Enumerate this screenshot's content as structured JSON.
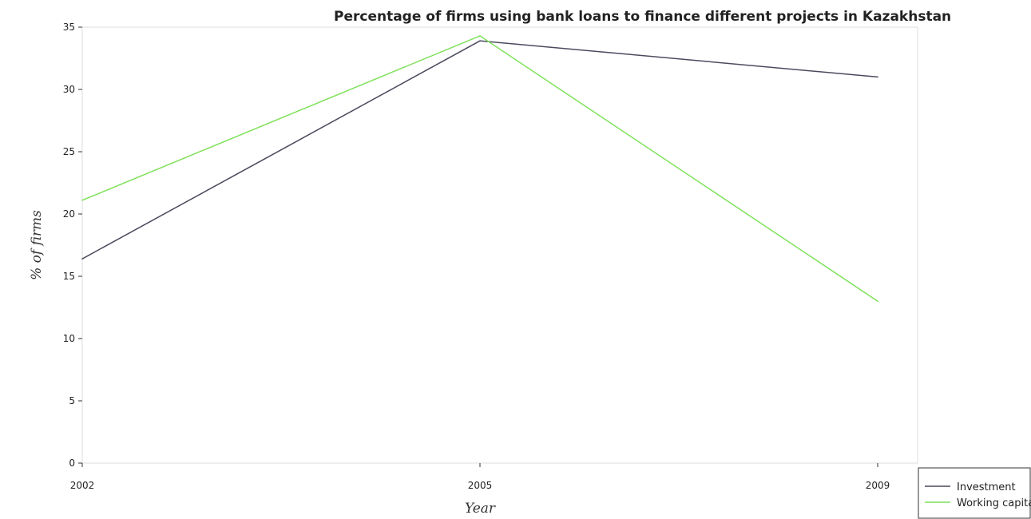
{
  "chart_data": {
    "type": "line",
    "title": "Percentage of firms using bank loans to finance different projects in Kazakhstan",
    "xlabel": "Year",
    "ylabel": "% of firms",
    "categories": [
      "2002",
      "2005",
      "2009"
    ],
    "ylim": [
      0,
      35
    ],
    "yticks": [
      0,
      5,
      10,
      15,
      20,
      25,
      30,
      35
    ],
    "grid": false,
    "legend_position": "bottom-right",
    "series": [
      {
        "name": "Investment",
        "color": "#4a4a5e",
        "values": [
          16.4,
          33.9,
          31.0
        ]
      },
      {
        "name": "Working capital",
        "color": "#7fe05a",
        "values": [
          21.1,
          34.3,
          13.0
        ]
      }
    ]
  }
}
